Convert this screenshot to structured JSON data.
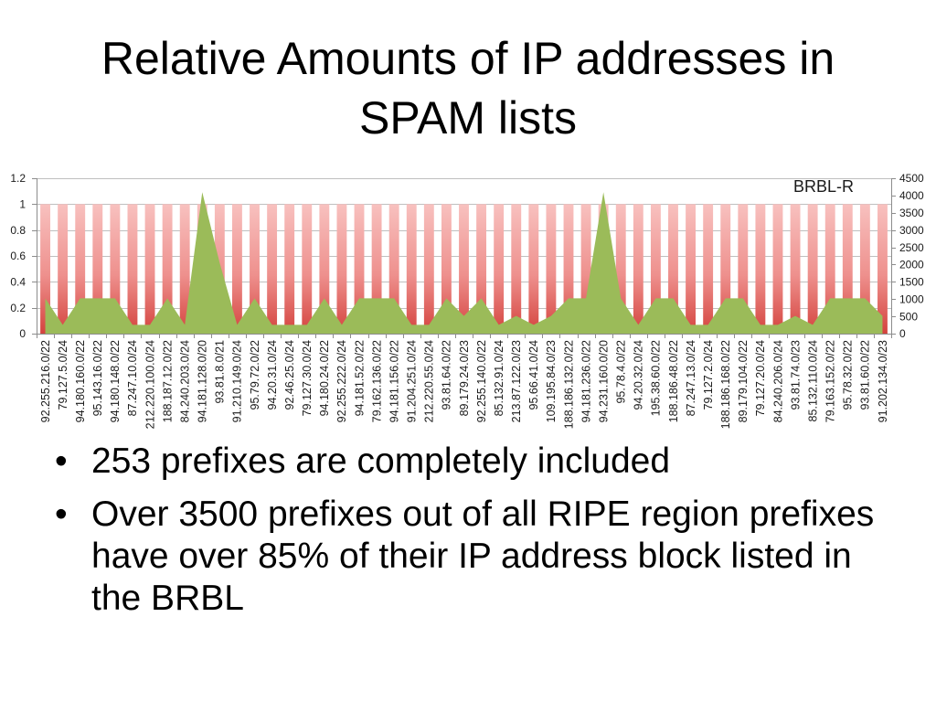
{
  "slide": {
    "title": "Relative Amounts of IP addresses in SPAM lists",
    "bullet_symbol": "•",
    "bullets": [
      {
        "lines": [
          "253 prefixes are completely included"
        ]
      },
      {
        "lines": [
          "Over 3500 prefixes out of all RIPE region prefixes",
          "have over 85% of their IP address block listed in",
          "the BRBL"
        ]
      }
    ]
  },
  "chart_data": {
    "type": "bar",
    "annotation": "BRBL-R",
    "annotation_position": "top-right",
    "grid": true,
    "ylim": [
      0,
      1.2
    ],
    "y2lim": [
      0,
      4500
    ],
    "yticks": [
      0,
      0.2,
      0.4,
      0.6,
      0.8,
      1,
      1.2
    ],
    "y2ticks": [
      0,
      500,
      1000,
      1500,
      2000,
      2500,
      3000,
      3500,
      4000,
      4500
    ],
    "categories": [
      "92.255.216.0/22",
      "79.127.5.0/24",
      "94.180.160.0/22",
      "95.143.16.0/22",
      "94.180.148.0/22",
      "87.247.10.0/24",
      "212.220.100.0/24",
      "188.187.12.0/22",
      "84.240.203.0/24",
      "94.181.128.0/20",
      "93.81.8.0/21",
      "91.210.149.0/24",
      "95.79.72.0/22",
      "94.20.31.0/24",
      "92.46.25.0/24",
      "79.127.30.0/24",
      "94.180.24.0/22",
      "92.255.222.0/24",
      "94.181.52.0/22",
      "79.162.136.0/22",
      "94.181.156.0/22",
      "91.204.251.0/24",
      "212.220.55.0/24",
      "93.81.64.0/22",
      "89.179.24.0/23",
      "92.255.140.0/22",
      "85.132.91.0/24",
      "213.87.122.0/23",
      "95.66.41.0/24",
      "109.195.84.0/23",
      "188.186.132.0/22",
      "94.181.236.0/22",
      "94.231.160.0/20",
      "95.78.4.0/22",
      "94.20.32.0/24",
      "195.38.60.0/22",
      "188.186.48.0/22",
      "87.247.13.0/24",
      "79.127.2.0/24",
      "188.186.168.0/22",
      "89.179.104.0/22",
      "79.127.20.0/24",
      "84.240.206.0/24",
      "93.81.74.0/23",
      "85.132.110.0/24",
      "79.163.152.0/22",
      "95.78.32.0/22",
      "93.81.60.0/22",
      "91.202.134.0/23"
    ],
    "series": [
      {
        "type": "bar",
        "axis": "left",
        "values": [
          1,
          1,
          1,
          1,
          1,
          1,
          1,
          1,
          1,
          1,
          1,
          1,
          1,
          1,
          1,
          1,
          1,
          1,
          1,
          1,
          1,
          1,
          1,
          1,
          1,
          1,
          1,
          1,
          1,
          1,
          1,
          1,
          1,
          1,
          1,
          1,
          1,
          1,
          1,
          1,
          1,
          1,
          1,
          1,
          1,
          1,
          1,
          1,
          1
        ]
      },
      {
        "type": "area",
        "axis": "right",
        "values": [
          1024,
          256,
          1024,
          1024,
          1024,
          256,
          256,
          1024,
          256,
          4096,
          2048,
          256,
          1024,
          256,
          256,
          256,
          1024,
          256,
          1024,
          1024,
          1024,
          256,
          256,
          1024,
          512,
          1024,
          256,
          512,
          256,
          512,
          1024,
          1024,
          4096,
          1024,
          256,
          1024,
          1024,
          256,
          256,
          1024,
          1024,
          256,
          256,
          512,
          256,
          1024,
          1024,
          1024,
          512
        ]
      }
    ],
    "colors": {
      "bar_top": "#f8c1bf",
      "bar_middle": "#ee908d",
      "bar_bottom": "#d4433e",
      "area": "#9bbb59"
    }
  }
}
